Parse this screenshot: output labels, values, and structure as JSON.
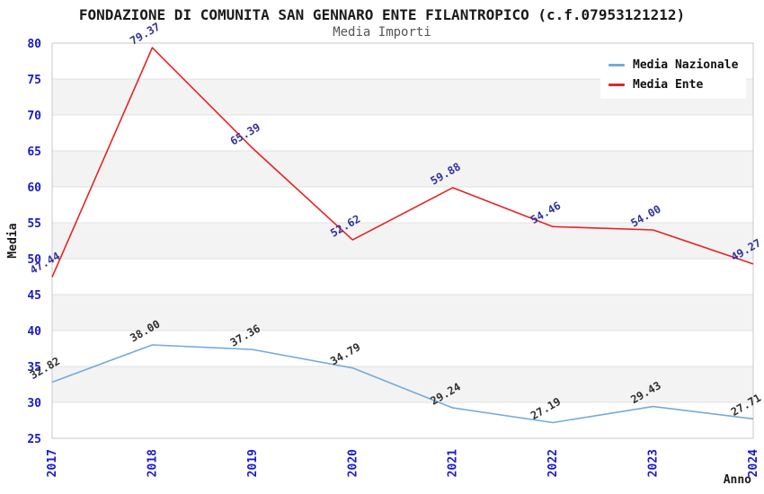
{
  "header": {
    "title": "FONDAZIONE DI COMUNITA SAN GENNARO ENTE FILANTROPICO (c.f.07953121212)",
    "subtitle": "Media Importi"
  },
  "legend": {
    "items": [
      {
        "label": "Media Nazionale",
        "color": "#74aadc"
      },
      {
        "label": "Media Ente",
        "color": "#e62424"
      }
    ]
  },
  "chart_data": {
    "type": "line",
    "title": "FONDAZIONE DI COMUNITA SAN GENNARO ENTE FILANTROPICO (c.f.07953121212)",
    "subtitle": "Media Importi",
    "xlabel": "Anno",
    "ylabel": "Media",
    "x": [
      "2017",
      "2018",
      "2019",
      "2020",
      "2021",
      "2022",
      "2023",
      "2024"
    ],
    "series": [
      {
        "name": "Media Nazionale",
        "color": "#74aadc",
        "label_color": "#303030",
        "values": [
          32.82,
          38.0,
          37.36,
          34.79,
          29.24,
          27.19,
          29.43,
          27.71
        ]
      },
      {
        "name": "Media Ente",
        "color": "#e62424",
        "label_color": "#32329b",
        "values": [
          47.44,
          79.37,
          65.39,
          52.62,
          59.88,
          54.46,
          54.0,
          49.27
        ]
      }
    ],
    "ylim": [
      25,
      80
    ],
    "ytick_step": 5,
    "grid": true,
    "legend_position": "top-right",
    "colors": {
      "tick_label": "#1a1acc",
      "band_gray": "#f3f3f3",
      "gridline": "#e2e2e2",
      "plot_border": "#c8c8c8"
    }
  }
}
